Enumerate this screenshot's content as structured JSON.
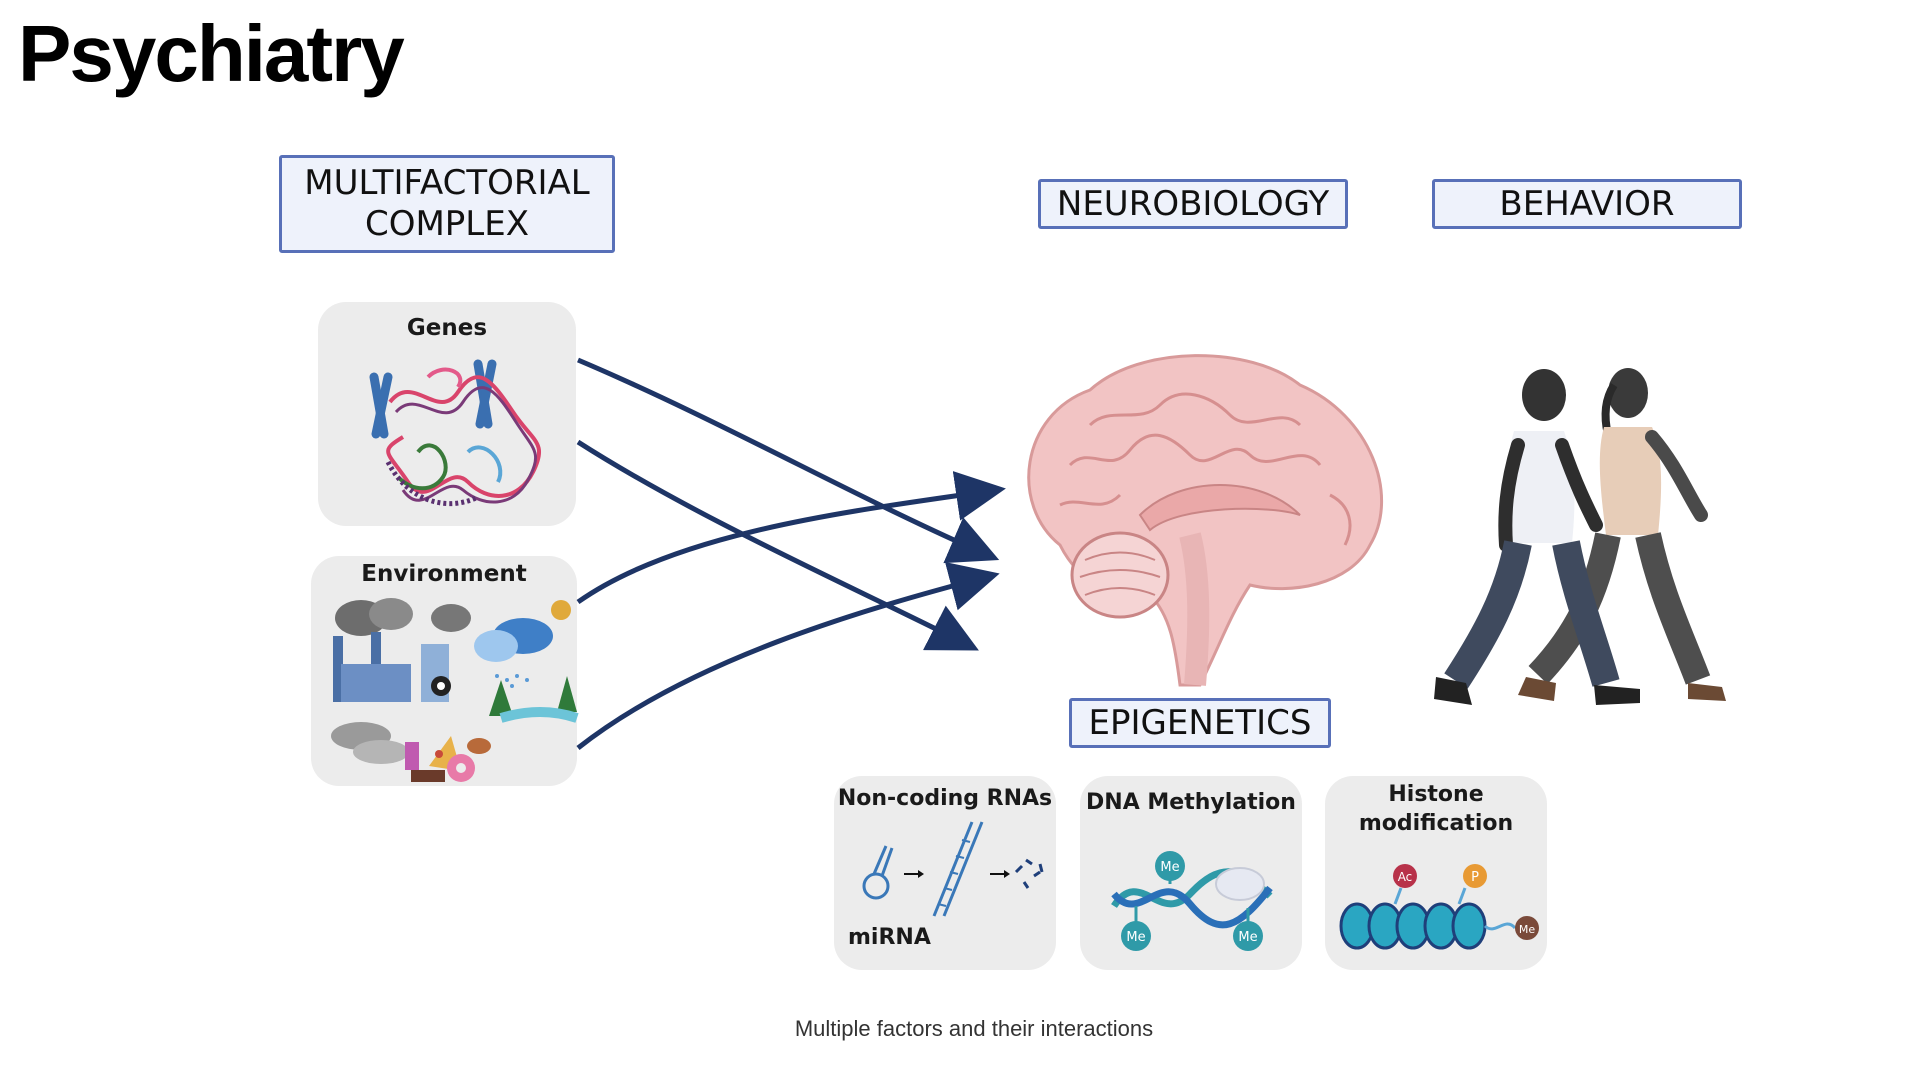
{
  "title": "Psychiatry",
  "headers": {
    "multifactorial_line1": "MULTIFACTORIAL",
    "multifactorial_line2": "COMPLEX",
    "neurobiology": "NEUROBIOLOGY",
    "behavior": "BEHAVIOR",
    "epigenetics": "EPIGENETICS"
  },
  "panels": {
    "genes": "Genes",
    "environment": "Environment",
    "noncoding": "Non-coding RNAs",
    "mirna": "miRNA",
    "methylation": "DNA Methylation",
    "histone_line1": "Histone",
    "histone_line2": "modification"
  },
  "marks": {
    "me": "Me",
    "ac": "Ac",
    "p": "P"
  },
  "icons": {
    "genes": "chromosome-dna-icon",
    "environment": "pollution-nature-food-icon",
    "brain": "brain-sagittal-icon",
    "behavior": "walking-people-icon",
    "mirna": "mirna-processing-icon",
    "methylation": "dna-methylation-icon",
    "histone": "nucleosome-icon"
  },
  "colors": {
    "arrow": "#1e3566",
    "box_border": "#5870b8",
    "box_fill": "#eef2fb",
    "panel_fill": "#ececec",
    "brain": "#f2c4c4",
    "methyl": "#2f9aa8"
  },
  "caption": "Multiple factors and their interactions"
}
